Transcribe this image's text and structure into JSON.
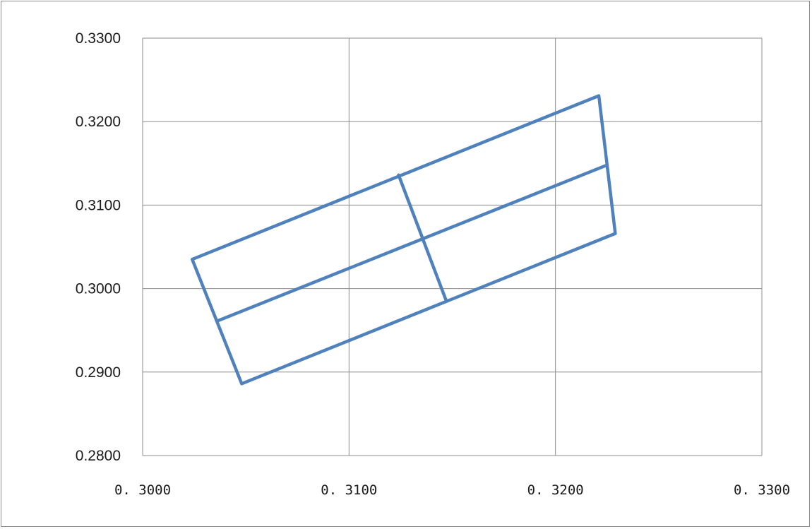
{
  "chart_data": {
    "type": "scatter",
    "title": "",
    "xlabel": "",
    "ylabel": "",
    "xlim": [
      0.3,
      0.33
    ],
    "ylim": [
      0.28,
      0.33
    ],
    "x_ticks": [
      "0. 3000",
      "0. 3100",
      "0. 3200",
      "0. 3300"
    ],
    "y_ticks": [
      "0.3300",
      "0.3200",
      "0.3100",
      "0.3000",
      "0.2900",
      "0.2800"
    ],
    "grid": true,
    "legend": "none",
    "line_color": "#4f81bd",
    "grid_color": "#8c8c8c",
    "series": [
      {
        "points": [
          [
            0.3024,
            0.3035
          ],
          [
            0.3221,
            0.3231
          ],
          [
            0.3229,
            0.3066
          ],
          [
            0.3048,
            0.2886
          ],
          [
            0.3024,
            0.3035
          ]
        ]
      },
      {
        "points": [
          [
            0.3036,
            0.2961
          ],
          [
            0.3225,
            0.3148
          ]
        ]
      },
      {
        "points": [
          [
            0.3124,
            0.3136
          ],
          [
            0.3147,
            0.2986
          ]
        ]
      }
    ]
  }
}
